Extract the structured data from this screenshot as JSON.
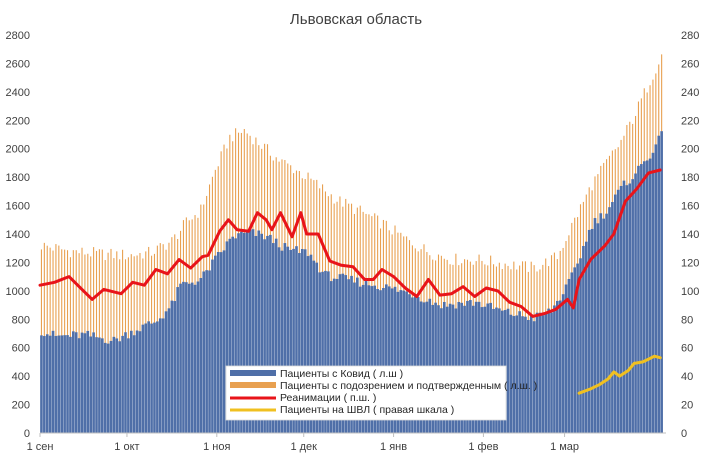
{
  "chart_data": {
    "type": "bar",
    "title": "Львовская область",
    "xlabel": "",
    "ylabel": "",
    "ylim": [
      0,
      2800
    ],
    "y2lim": [
      0,
      280
    ],
    "y_ticks": [
      "0",
      "200",
      "400",
      "600",
      "800",
      "1000",
      "1200",
      "1400",
      "1600",
      "1800",
      "2000",
      "2200",
      "2400",
      "2600",
      "2800"
    ],
    "y2_ticks": [
      "0",
      "20",
      "40",
      "60",
      "80",
      "100",
      "120",
      "140",
      "160",
      "180",
      "200",
      "220",
      "240",
      "260",
      "280"
    ],
    "x_tick_labels": [
      {
        "label": "1 сен",
        "day": 0
      },
      {
        "label": "1 окт",
        "day": 30
      },
      {
        "label": "1 ноя",
        "day": 61
      },
      {
        "label": "1 дек",
        "day": 91
      },
      {
        "label": "1 янв",
        "day": 122
      },
      {
        "label": "1 фев",
        "day": 153
      },
      {
        "label": "1 мар",
        "day": 181
      }
    ],
    "x_range_days": [
      0,
      216
    ],
    "grid": false,
    "legend_position": "bottom-center",
    "series": [
      {
        "name": "Пациенты с Ковид ( л.ш )",
        "kind": "bar",
        "axis": "left",
        "color": "#4f6fa8",
        "keypoints": [
          [
            0,
            720
          ],
          [
            5,
            680
          ],
          [
            15,
            690
          ],
          [
            25,
            650
          ],
          [
            32,
            720
          ],
          [
            40,
            790
          ],
          [
            45,
            900
          ],
          [
            48,
            1040
          ],
          [
            55,
            1080
          ],
          [
            60,
            1220
          ],
          [
            66,
            1380
          ],
          [
            72,
            1410
          ],
          [
            78,
            1380
          ],
          [
            85,
            1290
          ],
          [
            92,
            1270
          ],
          [
            98,
            1110
          ],
          [
            108,
            1070
          ],
          [
            118,
            1030
          ],
          [
            128,
            980
          ],
          [
            138,
            900
          ],
          [
            150,
            920
          ],
          [
            160,
            850
          ],
          [
            170,
            810
          ],
          [
            176,
            860
          ],
          [
            182,
            1050
          ],
          [
            186,
            1250
          ],
          [
            190,
            1470
          ],
          [
            195,
            1560
          ],
          [
            200,
            1720
          ],
          [
            205,
            1830
          ],
          [
            210,
            1960
          ],
          [
            214,
            2090
          ]
        ]
      },
      {
        "name": "Пациенты с подозрением и подтвержденным ( л.ш. )",
        "kind": "bar",
        "axis": "left",
        "color": "#e8a050",
        "keypoints": [
          [
            0,
            1320
          ],
          [
            10,
            1280
          ],
          [
            20,
            1260
          ],
          [
            30,
            1250
          ],
          [
            38,
            1270
          ],
          [
            45,
            1350
          ],
          [
            50,
            1480
          ],
          [
            55,
            1570
          ],
          [
            60,
            1850
          ],
          [
            65,
            2080
          ],
          [
            70,
            2130
          ],
          [
            75,
            2040
          ],
          [
            82,
            1920
          ],
          [
            88,
            1850
          ],
          [
            95,
            1750
          ],
          [
            102,
            1640
          ],
          [
            110,
            1560
          ],
          [
            118,
            1470
          ],
          [
            126,
            1360
          ],
          [
            134,
            1270
          ],
          [
            142,
            1220
          ],
          [
            150,
            1220
          ],
          [
            160,
            1190
          ],
          [
            170,
            1160
          ],
          [
            178,
            1240
          ],
          [
            184,
            1500
          ],
          [
            190,
            1750
          ],
          [
            195,
            1900
          ],
          [
            200,
            2050
          ],
          [
            205,
            2250
          ],
          [
            210,
            2480
          ],
          [
            214,
            2660
          ]
        ]
      },
      {
        "name": "Реанимации ( п.ш. )",
        "kind": "line",
        "axis": "right",
        "color": "#e8141a",
        "keypoints": [
          [
            0,
            104
          ],
          [
            5,
            106
          ],
          [
            10,
            110
          ],
          [
            15,
            100
          ],
          [
            18,
            94
          ],
          [
            22,
            101
          ],
          [
            28,
            98
          ],
          [
            32,
            106
          ],
          [
            36,
            104
          ],
          [
            40,
            115
          ],
          [
            44,
            112
          ],
          [
            48,
            122
          ],
          [
            52,
            116
          ],
          [
            56,
            124
          ],
          [
            58,
            125
          ],
          [
            62,
            142
          ],
          [
            65,
            150
          ],
          [
            68,
            143
          ],
          [
            72,
            142
          ],
          [
            75,
            155
          ],
          [
            78,
            150
          ],
          [
            80,
            143
          ],
          [
            83,
            155
          ],
          [
            87,
            138
          ],
          [
            90,
            155
          ],
          [
            92,
            140
          ],
          [
            96,
            140
          ],
          [
            100,
            121
          ],
          [
            104,
            118
          ],
          [
            108,
            117
          ],
          [
            112,
            108
          ],
          [
            115,
            108
          ],
          [
            118,
            115
          ],
          [
            122,
            110
          ],
          [
            126,
            102
          ],
          [
            130,
            96
          ],
          [
            134,
            108
          ],
          [
            138,
            97
          ],
          [
            142,
            98
          ],
          [
            146,
            103
          ],
          [
            150,
            96
          ],
          [
            154,
            102
          ],
          [
            158,
            100
          ],
          [
            162,
            92
          ],
          [
            166,
            89
          ],
          [
            170,
            82
          ],
          [
            174,
            84
          ],
          [
            178,
            87
          ],
          [
            182,
            94
          ],
          [
            184,
            88
          ],
          [
            186,
            108
          ],
          [
            190,
            122
          ],
          [
            195,
            132
          ],
          [
            198,
            140
          ],
          [
            202,
            163
          ],
          [
            206,
            172
          ],
          [
            210,
            183
          ],
          [
            214,
            185
          ]
        ]
      },
      {
        "name": "Пациенты на ШВЛ ( правая шкала )",
        "kind": "line",
        "axis": "right",
        "color": "#f0c020",
        "keypoints": [
          [
            186,
            28
          ],
          [
            190,
            31
          ],
          [
            193,
            34
          ],
          [
            196,
            38
          ],
          [
            198,
            43
          ],
          [
            200,
            40
          ],
          [
            203,
            44
          ],
          [
            205,
            49
          ],
          [
            208,
            50
          ],
          [
            210,
            52
          ],
          [
            212,
            54
          ],
          [
            214,
            53
          ]
        ]
      }
    ]
  }
}
